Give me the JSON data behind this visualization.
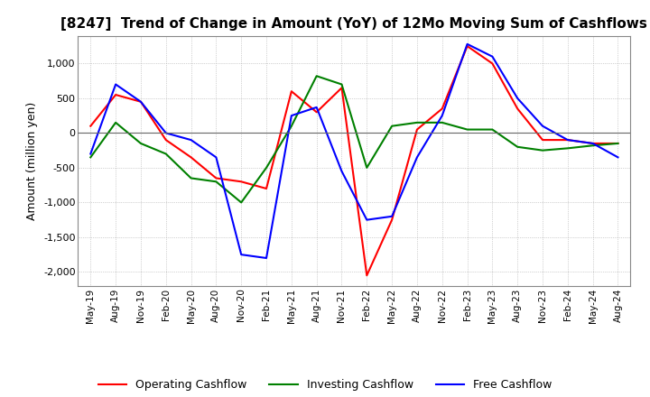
{
  "title": "[8247]  Trend of Change in Amount (YoY) of 12Mo Moving Sum of Cashflows",
  "ylabel": "Amount (million yen)",
  "ylim": [
    -2200,
    1400
  ],
  "yticks": [
    -2000,
    -1500,
    -1000,
    -500,
    0,
    500,
    1000
  ],
  "x_labels": [
    "May-19",
    "Aug-19",
    "Nov-19",
    "Feb-20",
    "May-20",
    "Aug-20",
    "Nov-20",
    "Feb-21",
    "May-21",
    "Aug-21",
    "Nov-21",
    "Feb-22",
    "May-22",
    "Aug-22",
    "Nov-22",
    "Feb-23",
    "May-23",
    "Aug-23",
    "Nov-23",
    "Feb-24",
    "May-24",
    "Aug-24"
  ],
  "operating": [
    100,
    550,
    450,
    -100,
    -350,
    -650,
    -700,
    -800,
    600,
    300,
    650,
    -2050,
    -1250,
    50,
    350,
    1250,
    1000,
    350,
    -100,
    -100,
    -150,
    -150
  ],
  "investing": [
    -350,
    150,
    -150,
    -300,
    -650,
    -700,
    -1000,
    -500,
    100,
    820,
    700,
    -500,
    100,
    150,
    150,
    50,
    50,
    -200,
    -250,
    -220,
    -180,
    -150
  ],
  "free": [
    -300,
    700,
    450,
    0,
    -100,
    -350,
    -1750,
    -1800,
    250,
    370,
    -550,
    -1250,
    -1200,
    -350,
    250,
    1280,
    1100,
    500,
    100,
    -100,
    -150,
    -350
  ],
  "operating_color": "#ff0000",
  "investing_color": "#008000",
  "free_color": "#0000ff",
  "bg_color": "#ffffff",
  "grid_color": "#aaaaaa"
}
